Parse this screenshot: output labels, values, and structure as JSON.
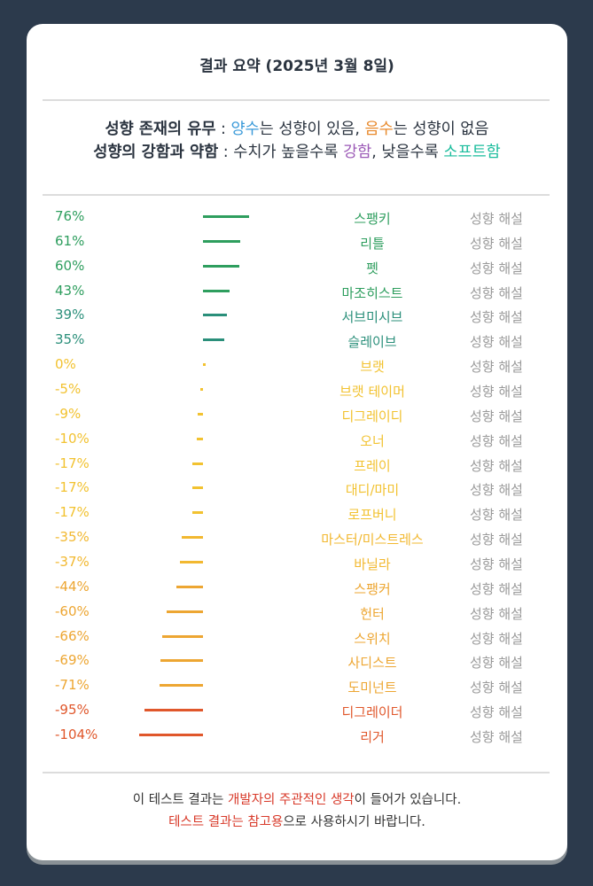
{
  "title": "결과 요약 (2025년 3월 8일)",
  "legend": {
    "line1": {
      "label": "성향 존재의 유무",
      "sep": " : ",
      "pos": "양수",
      "t1": "는 성향이 있음, ",
      "neg": "음수",
      "t2": "는 성향이 없음"
    },
    "line2": {
      "label": "성향의 강함과 약함",
      "sep": " : ",
      "t1": "수치가 높을수록 ",
      "strong": "강함",
      "t2": ", 낮을수록 ",
      "soft": "소프트함"
    },
    "colors": {
      "pos": "#3a9ad9",
      "neg": "#e8892b",
      "strong": "#9b59b6",
      "soft": "#1abc9c"
    }
  },
  "link_label": "성향 해설",
  "chart_data": {
    "type": "bar",
    "orientation": "horizontal",
    "categories": [
      "스팽키",
      "리틀",
      "펫",
      "마조히스트",
      "서브미시브",
      "슬레이브",
      "브랫",
      "브랫 테이머",
      "디그레이디",
      "오너",
      "프레이",
      "대디/마미",
      "로프버니",
      "마스터/미스트레스",
      "바닐라",
      "스팽커",
      "헌터",
      "스위치",
      "사디스트",
      "도미넌트",
      "디그레이더",
      "리거"
    ],
    "values": [
      76,
      61,
      60,
      43,
      39,
      35,
      0,
      -5,
      -9,
      -10,
      -17,
      -17,
      -17,
      -35,
      -37,
      -44,
      -60,
      -66,
      -69,
      -71,
      -95,
      -104
    ],
    "labels": [
      "76%",
      "61%",
      "60%",
      "43%",
      "39%",
      "35%",
      "0%",
      "-5%",
      "-9%",
      "-10%",
      "-17%",
      "-17%",
      "-17%",
      "-35%",
      "-37%",
      "-44%",
      "-60%",
      "-66%",
      "-69%",
      "-71%",
      "-95%",
      "-104%"
    ],
    "colors": [
      "#2e9e5e",
      "#2e9e5e",
      "#2e9e5e",
      "#2e9e5e",
      "#2a8f7a",
      "#2a8f7a",
      "#f2c230",
      "#f2c230",
      "#f2c230",
      "#f2c230",
      "#f2c230",
      "#f2c230",
      "#f2c230",
      "#f2b830",
      "#f2b830",
      "#eda632",
      "#eda632",
      "#eda632",
      "#eda632",
      "#eda632",
      "#e0572b",
      "#e0572b"
    ],
    "unit": "%",
    "xlim": [
      -110,
      80
    ]
  },
  "footer": {
    "l1a": "이 테스트 결과는 ",
    "l1b": "개발자의 주관적인 생각",
    "l1c": "이 들어가 있습니다.",
    "l2a": "테스트 결과는 참고용",
    "l2b": "으로 사용하시기 바랍니다."
  }
}
